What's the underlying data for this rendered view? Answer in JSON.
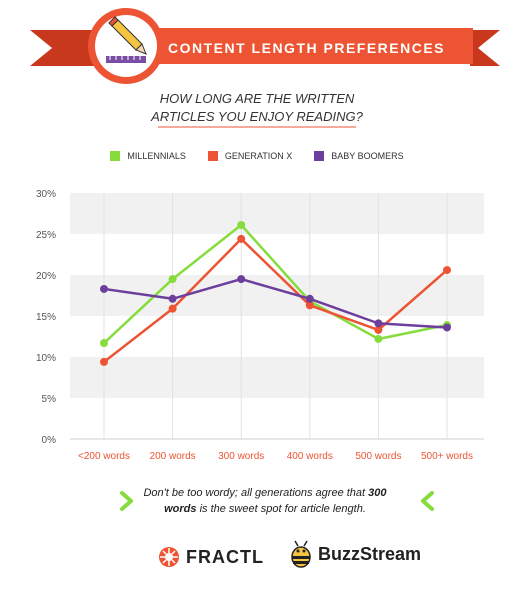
{
  "banner": {
    "title": "CONTENT LENGTH PREFERENCES",
    "icon": "pencil-ruler-icon"
  },
  "question": {
    "line1": "HOW LONG ARE THE WRITTEN",
    "line2": "ARTICLES YOU ENJOY READING?"
  },
  "chart_data": {
    "type": "line",
    "categories": [
      "<200 words",
      "200 words",
      "300 words",
      "400 words",
      "500 words",
      "500+ words"
    ],
    "series": [
      {
        "name": "MILLENNIALS",
        "color": "#86dc3c",
        "values": [
          11.7,
          19.5,
          26.1,
          16.8,
          12.2,
          13.9
        ]
      },
      {
        "name": "GENERATION X",
        "color": "#ec5433",
        "values": [
          9.4,
          15.9,
          24.4,
          16.3,
          13.3,
          20.6
        ]
      },
      {
        "name": "BABY BOOMERS",
        "color": "#6d3f9c",
        "values": [
          18.3,
          17.1,
          19.5,
          17.1,
          14.1,
          13.6
        ]
      }
    ],
    "yticks": [
      "30%",
      "25%",
      "20%",
      "15%",
      "10%",
      "5%",
      "0%"
    ],
    "ylim": [
      0,
      30
    ],
    "grid": "alternating horizontal bands"
  },
  "caption": {
    "part1": "Don't be too wordy; all generations agree that",
    "bold": "300 words",
    "part2": "is the sweet spot for article length."
  },
  "logos": {
    "fractl": "FRACTL",
    "buzzstream": "BuzzStream"
  },
  "colors": {
    "accent": "#ec5433",
    "green": "#86dc3c",
    "purple": "#6d3f9c",
    "band": "#f1f1f1"
  }
}
